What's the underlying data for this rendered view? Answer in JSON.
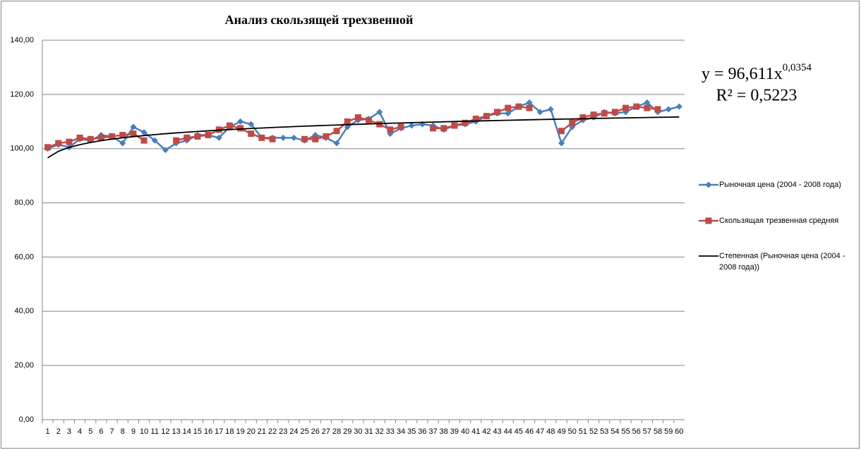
{
  "chart_data": {
    "type": "line",
    "title": "Анализ скользящей трехзвенной",
    "categories": [
      1,
      2,
      3,
      4,
      5,
      6,
      7,
      8,
      9,
      10,
      11,
      12,
      13,
      14,
      15,
      16,
      17,
      18,
      19,
      20,
      21,
      22,
      23,
      24,
      25,
      26,
      27,
      28,
      29,
      30,
      31,
      32,
      33,
      34,
      35,
      36,
      37,
      38,
      39,
      40,
      41,
      42,
      43,
      44,
      45,
      46,
      47,
      48,
      49,
      50,
      51,
      52,
      53,
      54,
      55,
      56,
      57,
      58,
      59,
      60
    ],
    "ylim": [
      0,
      140
    ],
    "yticks": [
      {
        "value": 0,
        "label": "0,00"
      },
      {
        "value": 20,
        "label": "20,00"
      },
      {
        "value": 40,
        "label": "40,00"
      },
      {
        "value": 60,
        "label": "60,00"
      },
      {
        "value": 80,
        "label": "80,00"
      },
      {
        "value": 100,
        "label": "100,00"
      },
      {
        "value": 120,
        "label": "120,00"
      },
      {
        "value": 140,
        "label": "140,00"
      }
    ],
    "grid": true,
    "legend": "right",
    "series": [
      {
        "name": "Рыночная цена (2004 - 2008 года)",
        "color": "#4a7ebb",
        "marker": "diamond",
        "line_width": 2.5,
        "values": [
          100.0,
          101.5,
          100.5,
          103.5,
          103.0,
          105.0,
          104.5,
          102.0,
          108.0,
          106.0,
          103.0,
          99.5,
          102.0,
          103.0,
          105.0,
          105.0,
          104.0,
          108.0,
          110.0,
          109.0,
          104.0,
          104.0,
          104.0,
          104.0,
          103.0,
          105.0,
          104.0,
          102.0,
          108.0,
          110.5,
          111.0,
          113.5,
          105.5,
          107.5,
          108.5,
          109.0,
          108.5,
          107.0,
          108.5,
          109.0,
          110.0,
          112.0,
          113.0,
          113.0,
          115.5,
          117.0,
          113.5,
          114.5,
          102.0,
          108.0,
          110.5,
          111.5,
          113.5,
          113.0,
          113.5,
          115.5,
          117.0,
          113.5,
          114.5,
          115.5
        ]
      },
      {
        "name": "Скользящая трезвенная средняя",
        "color": "#be4b48",
        "marker": "square",
        "line_width": 2.5,
        "values": [
          100.5,
          102.0,
          102.5,
          104.0,
          103.5,
          104.0,
          104.5,
          105.0,
          105.5,
          103.0,
          null,
          null,
          103.0,
          104.0,
          104.5,
          105.0,
          107.0,
          108.5,
          107.5,
          105.5,
          104.0,
          103.5,
          null,
          null,
          103.5,
          103.5,
          104.5,
          106.5,
          110.0,
          111.5,
          110.5,
          109.0,
          107.0,
          108.0,
          null,
          null,
          107.5,
          107.5,
          108.5,
          109.5,
          111.0,
          112.0,
          113.5,
          115.0,
          115.5,
          115.0,
          null,
          null,
          106.5,
          109.5,
          111.5,
          112.5,
          113.0,
          113.5,
          115.0,
          115.5,
          115.0,
          114.5,
          null,
          null
        ]
      },
      {
        "name": "Степенная (Рыночная  цена (2004 - 2008 года))",
        "color": "#000000",
        "marker": "none",
        "line_width": 1.8,
        "values": [
          96.61,
          99.01,
          100.44,
          101.47,
          102.28,
          102.94,
          103.5,
          103.99,
          104.43,
          104.82,
          105.17,
          105.5,
          105.8,
          106.08,
          106.34,
          106.58,
          106.81,
          107.03,
          107.23,
          107.43,
          107.61,
          107.79,
          107.96,
          108.12,
          108.28,
          108.43,
          108.57,
          108.71,
          108.85,
          108.98,
          109.1,
          109.23,
          109.35,
          109.46,
          109.57,
          109.68,
          109.79,
          109.89,
          109.99,
          110.09,
          110.19,
          110.28,
          110.37,
          110.46,
          110.55,
          110.64,
          110.72,
          110.8,
          110.88,
          110.96,
          111.04,
          111.12,
          111.19,
          111.27,
          111.34,
          111.41,
          111.48,
          111.55,
          111.61,
          111.68
        ]
      }
    ],
    "trend_equation": {
      "text": "y = 96,611x",
      "exponent": "0,0354"
    },
    "r_squared": "R² = 0,5223"
  }
}
